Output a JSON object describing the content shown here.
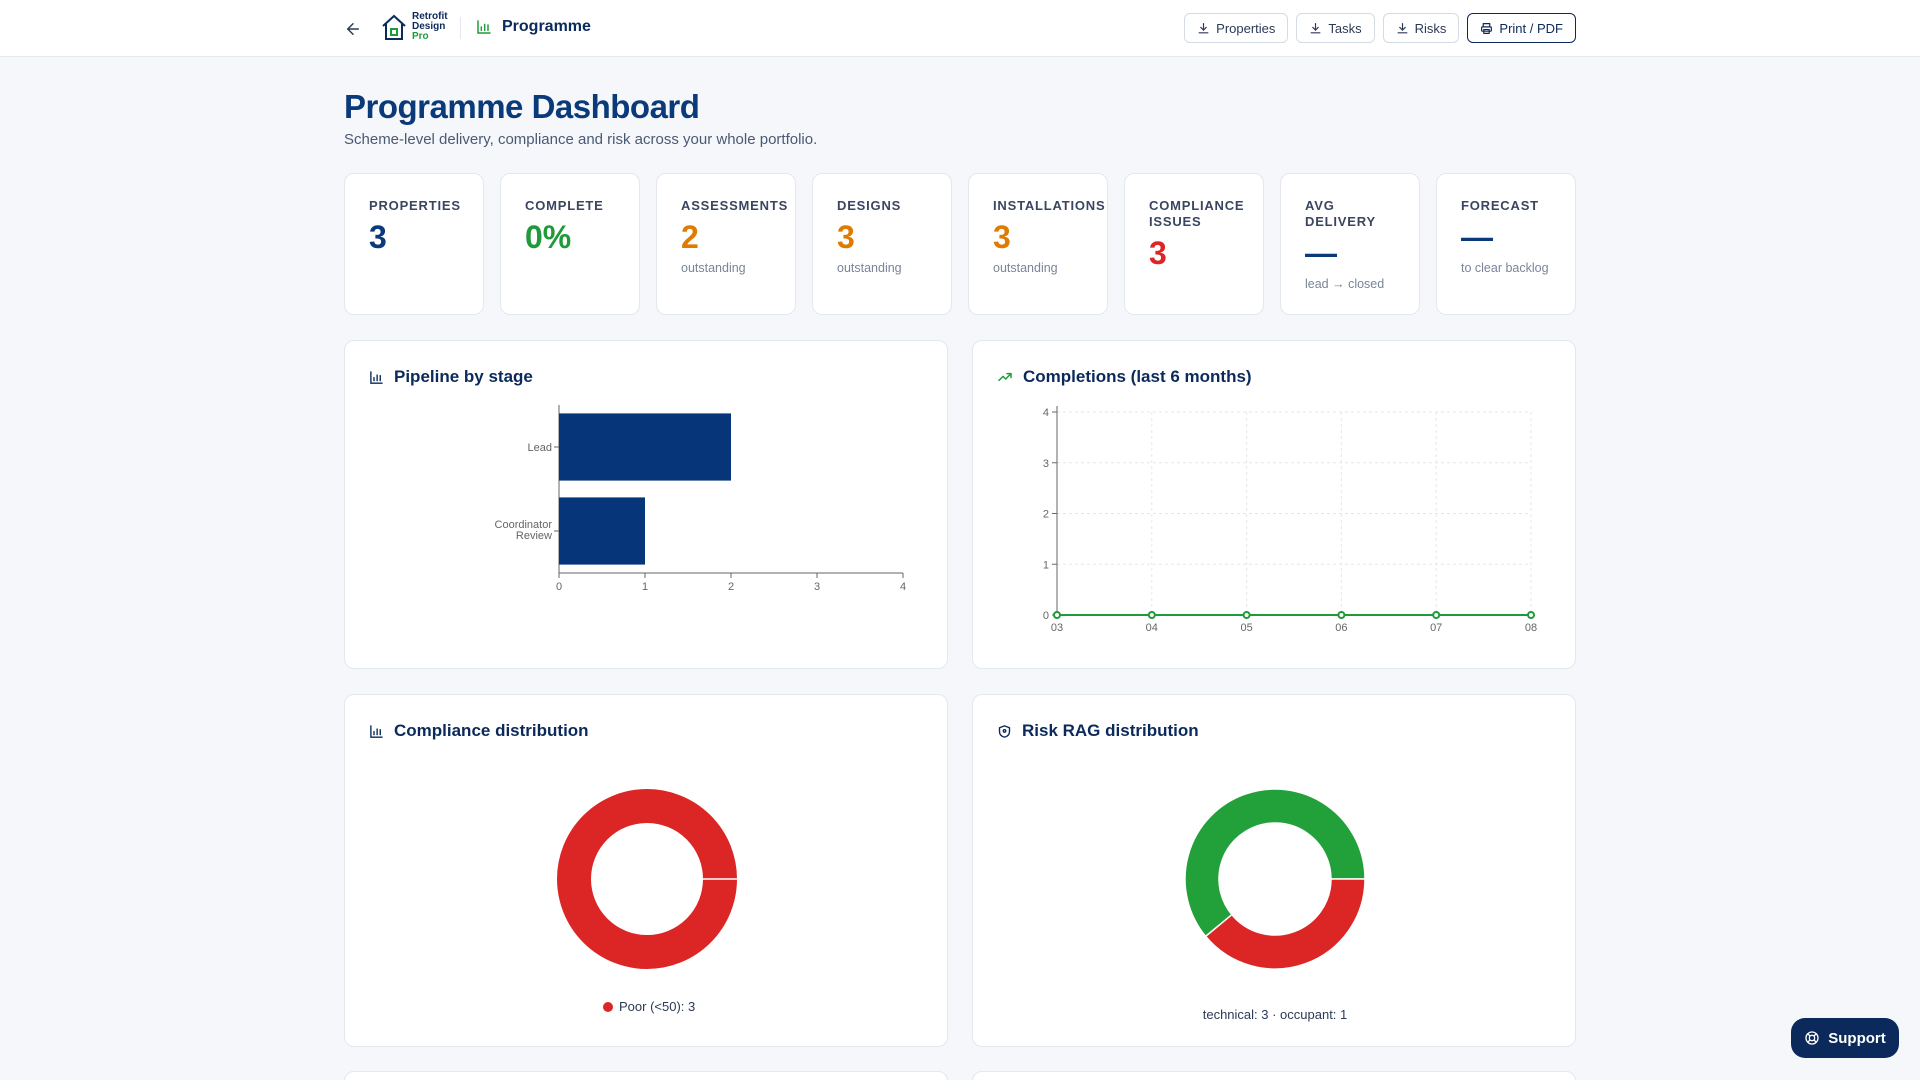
{
  "header": {
    "logo": {
      "line1": "Retrofit",
      "line2": "Design",
      "line3": "Pro"
    },
    "breadcrumb": "Programme",
    "actions": [
      {
        "label": "Properties",
        "icon": "download-icon"
      },
      {
        "label": "Tasks",
        "icon": "download-icon"
      },
      {
        "label": "Risks",
        "icon": "download-icon"
      },
      {
        "label": "Print / PDF",
        "icon": "printer-icon"
      }
    ]
  },
  "page": {
    "title": "Programme Dashboard",
    "subtitle": "Scheme-level delivery, compliance and risk across your whole portfolio."
  },
  "stats": [
    {
      "label": "Properties",
      "value": "3",
      "sub": "",
      "color": "#0b3a7a"
    },
    {
      "label": "Complete",
      "value": "0%",
      "sub": "",
      "color": "#1f9a3a"
    },
    {
      "label": "Assessments",
      "value": "2",
      "sub": "outstanding",
      "color": "#e07b00"
    },
    {
      "label": "Designs",
      "value": "3",
      "sub": "outstanding",
      "color": "#e07b00"
    },
    {
      "label": "Installations",
      "value": "3",
      "sub": "outstanding",
      "color": "#e07b00"
    },
    {
      "label": "Compliance Issues",
      "value": "3",
      "sub": "",
      "color": "#dc2626"
    },
    {
      "label": "Avg Delivery",
      "value": "—",
      "sub": "lead → closed",
      "color": "#0b3a7a"
    },
    {
      "label": "Forecast",
      "value": "—",
      "sub": "to clear backlog",
      "color": "#0b3a7a"
    }
  ],
  "cards": {
    "pipeline": {
      "title": "Pipeline by stage"
    },
    "completions": {
      "title": "Completions (last 6 months)"
    },
    "compliance": {
      "title": "Compliance distribution"
    },
    "risk": {
      "title": "Risk RAG distribution"
    }
  },
  "chart_data": [
    {
      "type": "bar",
      "orientation": "horizontal",
      "categories": [
        "Lead",
        "Coordinator Review"
      ],
      "values": [
        2,
        1
      ],
      "xlim": [
        0,
        4
      ],
      "xticks": [
        "0",
        "1",
        "2",
        "3",
        "4"
      ],
      "color": "#06357a"
    },
    {
      "type": "line",
      "x": [
        "03",
        "04",
        "05",
        "06",
        "07",
        "08"
      ],
      "values": [
        0,
        0,
        0,
        0,
        0,
        0
      ],
      "ylim": [
        0,
        4
      ],
      "yticks": [
        "0",
        "1",
        "2",
        "3",
        "4"
      ],
      "grid": true,
      "color": "#1f9a3a"
    },
    {
      "type": "pie",
      "variant": "donut",
      "slices": [
        {
          "label": "Poor (<50)",
          "value": 3,
          "color": "#dc2626"
        }
      ],
      "legend": "Poor (<50): 3"
    },
    {
      "type": "pie",
      "variant": "donut",
      "slices": [
        {
          "label": "green",
          "value": 0.61,
          "color": "#22a03a"
        },
        {
          "label": "red",
          "value": 0.39,
          "color": "#dc2626"
        }
      ],
      "legend": "technical: 3 · occupant: 1"
    }
  ],
  "support": {
    "label": "Support"
  }
}
